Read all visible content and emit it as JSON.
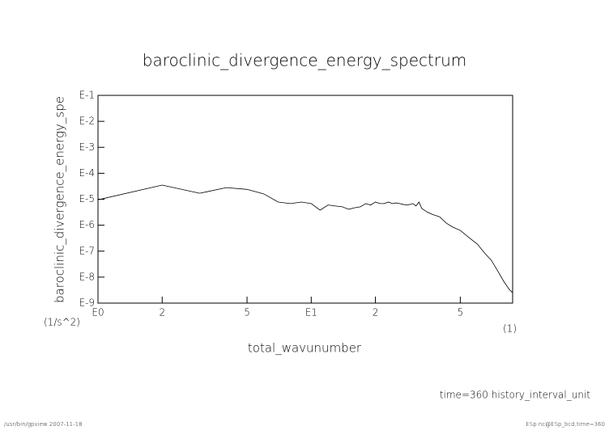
{
  "chart_data": {
    "type": "line",
    "title": "baroclinic_divergence_energy_spectrum",
    "y_label": "baroclinic_divergence_energy_spe",
    "y_unit": "(1/s^2)",
    "x_label": "total_wavunumber",
    "x_unit": "(1)",
    "annotation": "time=360 history_interval_unit",
    "footer_left": "/usr/bin/gpview  2007-11-18",
    "footer_right": "ESp.nc@ESp_bcd,time=360",
    "x_log": true,
    "y_log": true,
    "color": "#000000",
    "xlim": [
      1,
      88
    ],
    "ylim": [
      1e-09,
      0.1
    ],
    "xticks": [
      {
        "value": 1,
        "label": "E0"
      },
      2,
      5,
      {
        "value": 10,
        "label": "E1"
      },
      {
        "value": 20,
        "label": "2"
      },
      {
        "value": 50,
        "label": "5"
      }
    ],
    "yticks": [
      {
        "value": 1e-09,
        "label": "E-9"
      },
      {
        "value": 1e-08,
        "label": "E-8"
      },
      {
        "value": 1e-07,
        "label": "E-7"
      },
      {
        "value": 1e-06,
        "label": "E-6"
      },
      {
        "value": 1e-05,
        "label": "E-5"
      },
      {
        "value": 0.0001,
        "label": "E-4"
      },
      {
        "value": 0.001,
        "label": "E-3"
      },
      {
        "value": 0.01,
        "label": "E-2"
      },
      {
        "value": 0.1,
        "label": "E-1"
      }
    ],
    "x": [
      1,
      2,
      3,
      4,
      5,
      6,
      7,
      8,
      9,
      10,
      11,
      12,
      13,
      14,
      15,
      16,
      17,
      18,
      19,
      20,
      21,
      22,
      23,
      24,
      25,
      26,
      27,
      28,
      29,
      30,
      31,
      32,
      33,
      35,
      37,
      40,
      43,
      46,
      50,
      55,
      60,
      65,
      70,
      75,
      80,
      85,
      88
    ],
    "values": [
      9.5e-06,
      3.5e-05,
      1.7e-05,
      2.8e-05,
      2.4e-05,
      1.6e-05,
      7.8e-06,
      6.8e-06,
      7.8e-06,
      6.8e-06,
      3.8e-06,
      6e-06,
      5.5e-06,
      5.1e-06,
      4.1e-06,
      4.7e-06,
      5.1e-06,
      6.8e-06,
      6e-06,
      7.8e-06,
      6.8e-06,
      6.8e-06,
      7.8e-06,
      6.8e-06,
      7.2e-06,
      6.8e-06,
      6.3e-06,
      6e-06,
      6.3e-06,
      6.8e-06,
      5.5e-06,
      7.8e-06,
      4.4e-06,
      3.2e-06,
      2.6e-06,
      2.1e-06,
      1.2e-06,
      8.5e-07,
      6.3e-07,
      3.3e-07,
      1.9e-07,
      8.5e-08,
      4.4e-08,
      1.7e-08,
      6.8e-09,
      3.3e-09,
      2.5e-09
    ]
  }
}
